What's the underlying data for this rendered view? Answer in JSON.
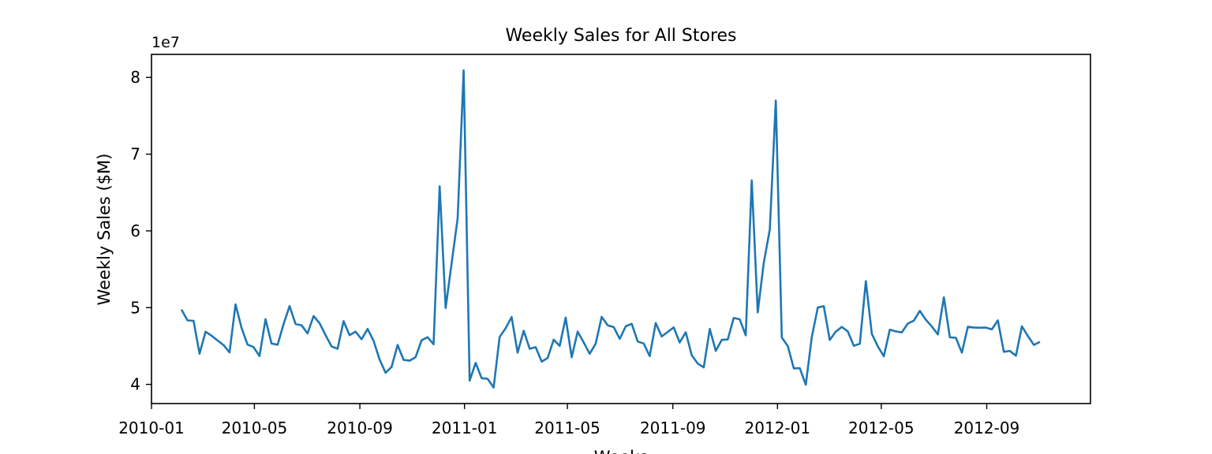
{
  "chart_data": {
    "type": "line",
    "title": "Weekly Sales for All Stores",
    "xlabel": "Weeks",
    "ylabel": "Weekly Sales ($M)",
    "y_offset_label": "1e7",
    "y_scale_factor": 10000000,
    "x_is_date": true,
    "xlim": [
      "2010-01-01",
      "2012-12-31"
    ],
    "ylim": [
      37500000,
      83000000
    ],
    "x_ticks": [
      "2010-01-01",
      "2010-05-01",
      "2010-09-01",
      "2011-01-01",
      "2011-05-01",
      "2011-09-01",
      "2012-01-01",
      "2012-05-01",
      "2012-09-01"
    ],
    "x_tick_labels": [
      "2010-01",
      "2010-05",
      "2010-09",
      "2011-01",
      "2011-05",
      "2011-09",
      "2012-01",
      "2012-05",
      "2012-09"
    ],
    "y_ticks": [
      40000000,
      50000000,
      60000000,
      70000000,
      80000000
    ],
    "y_tick_labels": [
      "4",
      "5",
      "6",
      "7",
      "8"
    ],
    "grid": false,
    "line_color": "#1f77b4",
    "series": [
      {
        "start_date": "2010-02-05",
        "interval_days": 7,
        "values": [
          49750000,
          48340000,
          48280000,
          43990000,
          46870000,
          46340000,
          45720000,
          45120000,
          44170000,
          50420000,
          47370000,
          45180000,
          44860000,
          43680000,
          48500000,
          45330000,
          45160000,
          47860000,
          50200000,
          47860000,
          47700000,
          46640000,
          48900000,
          47970000,
          46410000,
          44950000,
          44640000,
          48240000,
          46410000,
          46870000,
          45880000,
          47230000,
          45650000,
          43230000,
          41510000,
          42290000,
          45140000,
          43190000,
          43090000,
          43550000,
          45750000,
          46150000,
          45220000,
          65820000,
          49960000,
          55820000,
          61640000,
          80930000,
          40480000,
          42800000,
          40810000,
          40720000,
          39600000,
          46180000,
          47310000,
          48780000,
          44140000,
          46990000,
          44640000,
          44840000,
          42960000,
          43450000,
          45830000,
          45020000,
          48700000,
          43540000,
          46880000,
          45470000,
          43990000,
          45300000,
          48800000,
          47690000,
          47460000,
          45930000,
          47570000,
          47890000,
          45580000,
          45330000,
          43680000,
          48000000,
          46240000,
          46840000,
          47420000,
          45460000,
          46780000,
          43790000,
          42710000,
          42210000,
          47230000,
          44370000,
          45800000,
          45850000,
          48650000,
          48480000,
          46390000,
          66590000,
          49380000,
          55810000,
          60190000,
          76980000,
          46120000,
          44990000,
          42080000,
          42110000,
          39940000,
          46170000,
          50010000,
          50190000,
          45790000,
          46870000,
          47480000,
          46910000,
          45030000,
          45300000,
          53450000,
          46580000,
          44960000,
          43660000,
          47120000,
          46900000,
          46770000,
          47930000,
          48300000,
          49580000,
          48430000,
          47550000,
          46510000,
          51350000,
          46130000,
          46070000,
          44140000,
          47500000,
          47400000,
          47380000,
          47400000,
          47170000,
          48340000,
          44240000,
          44360000,
          43730000,
          47570000,
          46290000,
          45140000,
          45540000
        ]
      }
    ]
  }
}
